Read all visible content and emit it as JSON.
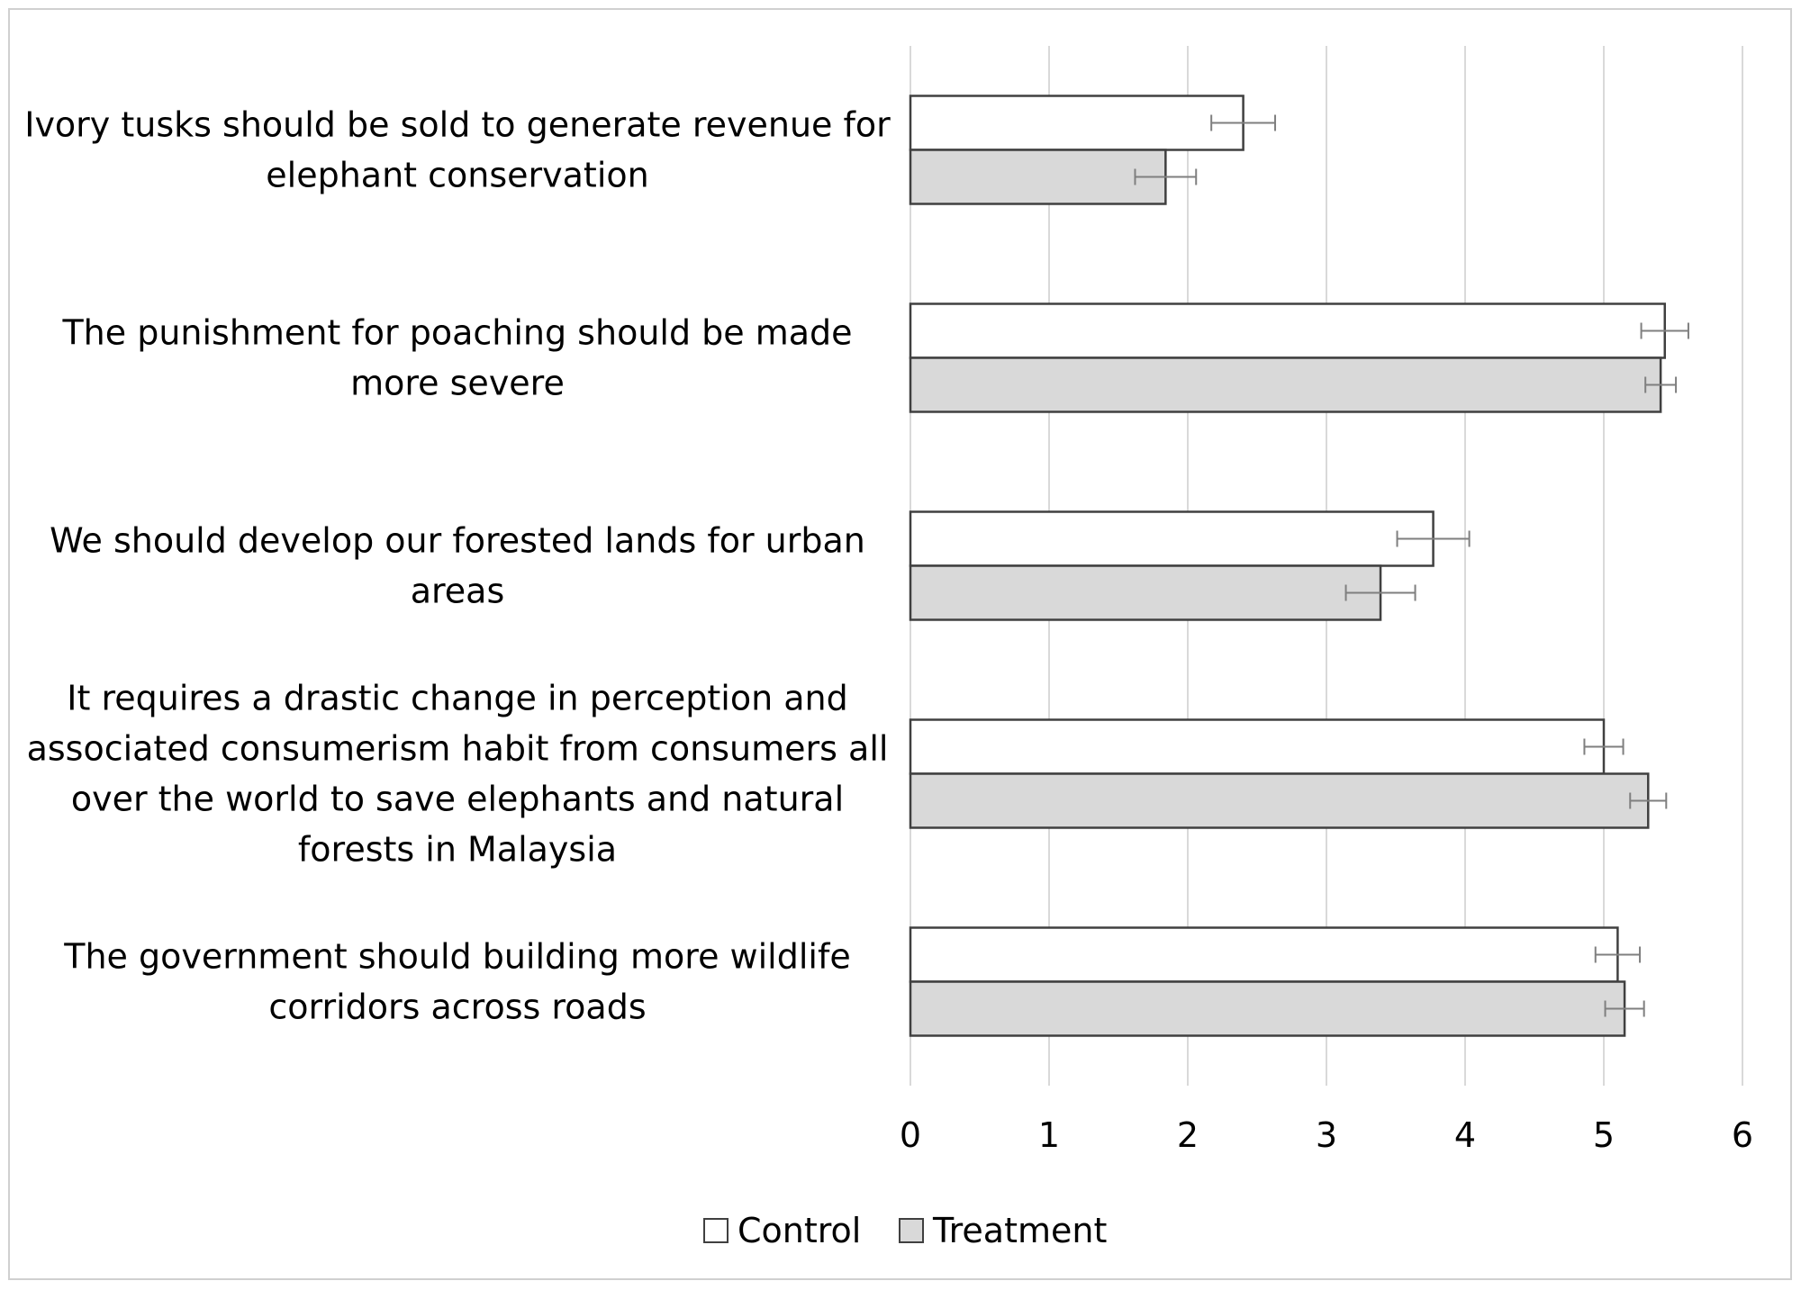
{
  "chart_data": {
    "type": "bar",
    "orientation": "horizontal",
    "categories": [
      "Ivory tusks should be sold to generate revenue for elephant conservation",
      "The punishment for poaching should be made more severe",
      "We should develop our forested lands for urban areas",
      "It requires a drastic change in perception and associated consumerism habit from consumers all over the world to save elephants and natural forests in Malaysia",
      "The government should building more wildlife corridors across roads"
    ],
    "category_lines": [
      [
        "Ivory tusks should be sold to generate revenue for",
        "elephant conservation"
      ],
      [
        "The punishment for poaching should be made",
        "more severe"
      ],
      [
        "We should develop our forested lands for urban",
        "areas"
      ],
      [
        "It requires a drastic change in perception and",
        "associated consumerism habit from consumers all",
        "over the world to save elephants and natural",
        "forests in Malaysia"
      ],
      [
        "The government should building more wildlife",
        "corridors across roads"
      ]
    ],
    "series": [
      {
        "name": "Control",
        "color": "#ffffff",
        "values": [
          2.4,
          5.44,
          3.77,
          5.0,
          5.1
        ],
        "errors": [
          0.23,
          0.17,
          0.26,
          0.14,
          0.16
        ]
      },
      {
        "name": "Treatment",
        "color": "#d9d9d9",
        "values": [
          1.84,
          5.41,
          3.39,
          5.32,
          5.15
        ],
        "errors": [
          0.22,
          0.11,
          0.25,
          0.13,
          0.14
        ]
      }
    ],
    "xlim": [
      0,
      6
    ],
    "x_ticks": [
      "0",
      "1",
      "2",
      "3",
      "4",
      "5",
      "6"
    ],
    "grid": true,
    "legend_position": "bottom"
  }
}
